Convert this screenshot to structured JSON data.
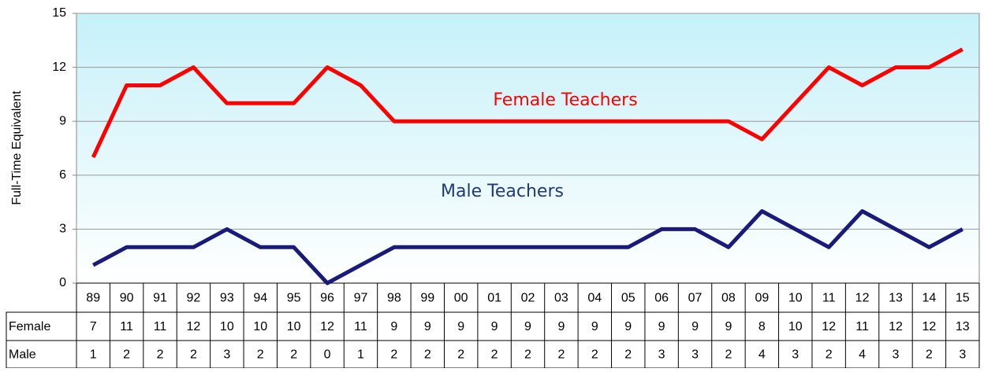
{
  "chart_data": {
    "type": "line",
    "y_axis_label": "Full-Time Equivalent",
    "categories": [
      "89",
      "90",
      "91",
      "92",
      "93",
      "94",
      "95",
      "96",
      "97",
      "98",
      "99",
      "00",
      "01",
      "02",
      "03",
      "04",
      "05",
      "06",
      "07",
      "08",
      "09",
      "10",
      "11",
      "12",
      "13",
      "14",
      "15"
    ],
    "series": [
      {
        "name": "Female",
        "color": "#ff0000",
        "values": [
          7,
          11,
          11,
          12,
          10,
          10,
          10,
          12,
          11,
          9,
          9,
          9,
          9,
          9,
          9,
          9,
          9,
          9,
          9,
          9,
          8,
          10,
          12,
          11,
          12,
          12,
          13
        ]
      },
      {
        "name": "Male",
        "color": "#1a1a7a",
        "values": [
          1,
          2,
          2,
          2,
          3,
          2,
          2,
          0,
          1,
          2,
          2,
          2,
          2,
          2,
          2,
          2,
          2,
          3,
          3,
          2,
          4,
          3,
          2,
          4,
          3,
          2,
          3
        ]
      }
    ],
    "annotations": [
      "Female Teachers",
      "Male Teachers"
    ],
    "ylim": [
      0,
      15
    ],
    "yticks": [
      0,
      3,
      6,
      9,
      12,
      15
    ],
    "grid": true
  }
}
